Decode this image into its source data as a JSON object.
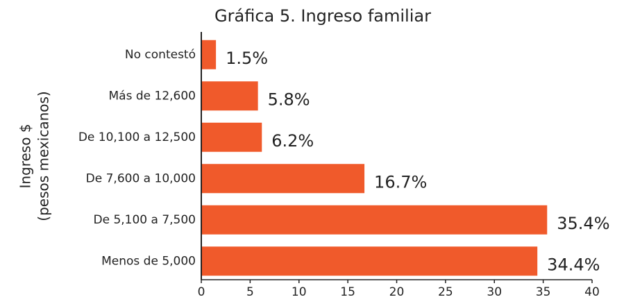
{
  "chart_data": {
    "type": "barh",
    "title": "Gráfica 5. Ingreso familiar",
    "ylabel": [
      "Ingreso $",
      "(pesos mexicanos)"
    ],
    "categories": [
      "No contestó",
      "Más de 12,600",
      "De 10,100 a 12,500",
      "De 7,600 a 10,000",
      "De 5,100 a 7,500",
      "Menos de 5,000"
    ],
    "values": [
      1.5,
      5.8,
      6.2,
      16.7,
      35.4,
      34.4
    ],
    "value_labels": [
      "1.5%",
      "5.8%",
      "6.2%",
      "16.7%",
      "35.4%",
      "34.4%"
    ],
    "color": "#f05a2b",
    "xlim": [
      0,
      40
    ],
    "xticks": [
      0,
      5,
      10,
      15,
      20,
      25,
      30,
      35,
      40
    ]
  }
}
